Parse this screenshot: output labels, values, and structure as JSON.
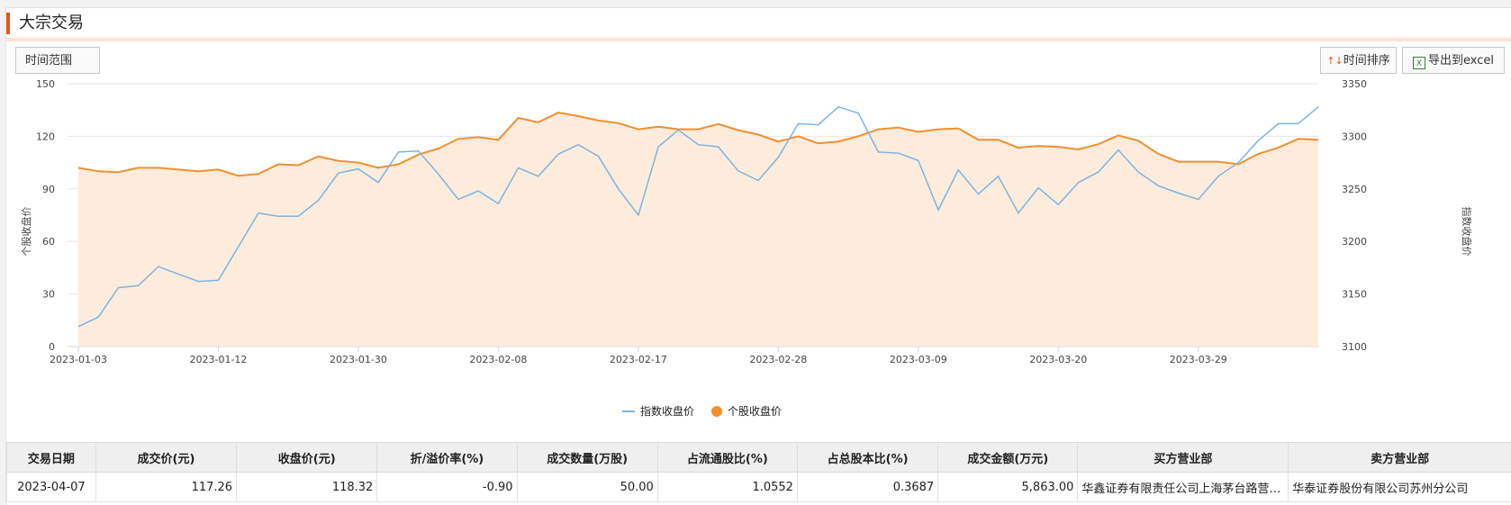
{
  "header": {
    "title": "大宗交易"
  },
  "toolbar": {
    "range_label": "时间范围",
    "sort_label": "时间排序",
    "sort_arrows": "↑↓",
    "export_label": "导出到excel"
  },
  "chart_data": {
    "type": "line",
    "x": [
      "2023-01-03",
      "2023-01-04",
      "2023-01-05",
      "2023-01-06",
      "2023-01-09",
      "2023-01-10",
      "2023-01-11",
      "2023-01-12",
      "2023-01-13",
      "2023-01-16",
      "2023-01-17",
      "2023-01-18",
      "2023-01-19",
      "2023-01-20",
      "2023-01-30",
      "2023-01-31",
      "2023-02-01",
      "2023-02-02",
      "2023-02-03",
      "2023-02-06",
      "2023-02-07",
      "2023-02-08",
      "2023-02-09",
      "2023-02-10",
      "2023-02-13",
      "2023-02-14",
      "2023-02-15",
      "2023-02-16",
      "2023-02-17",
      "2023-02-20",
      "2023-02-21",
      "2023-02-22",
      "2023-02-23",
      "2023-02-24",
      "2023-02-27",
      "2023-02-28",
      "2023-03-01",
      "2023-03-02",
      "2023-03-03",
      "2023-03-06",
      "2023-03-07",
      "2023-03-08",
      "2023-03-09",
      "2023-03-10",
      "2023-03-13",
      "2023-03-14",
      "2023-03-15",
      "2023-03-16",
      "2023-03-17",
      "2023-03-20",
      "2023-03-21",
      "2023-03-22",
      "2023-03-23",
      "2023-03-24",
      "2023-03-27",
      "2023-03-28",
      "2023-03-29",
      "2023-03-30",
      "2023-03-31",
      "2023-04-03",
      "2023-04-04",
      "2023-04-06",
      "2023-04-07"
    ],
    "x_tick_labels": [
      "2023-01-03",
      "2023-01-12",
      "2023-01-30",
      "2023-02-08",
      "2023-02-17",
      "2023-02-28",
      "2023-03-09",
      "2023-03-20",
      "2023-03-29"
    ],
    "series": [
      {
        "name": "指数收盘价",
        "axis": "right",
        "color": "#7cb5e0",
        "values": [
          3119,
          3128,
          3156,
          3158,
          3176,
          3169,
          3162,
          3163,
          3195,
          3227,
          3224,
          3224,
          3239,
          3265,
          3269,
          3256,
          3285,
          3286,
          3264,
          3240,
          3248,
          3236,
          3270,
          3262,
          3283,
          3292,
          3281,
          3250,
          3225,
          3290,
          3306,
          3292,
          3290,
          3267,
          3258,
          3280,
          3312,
          3311,
          3328,
          3322,
          3285,
          3284,
          3277,
          3230,
          3268,
          3245,
          3262,
          3227,
          3251,
          3235,
          3256,
          3266,
          3287,
          3266,
          3253,
          3246,
          3240,
          3262,
          3275,
          3296,
          3312,
          3312,
          3328
        ]
      },
      {
        "name": "个股收盘价",
        "axis": "left",
        "color": "#f0902e",
        "values": [
          102,
          100,
          99.5,
          102,
          102,
          101,
          100,
          101,
          97.5,
          98.5,
          104,
          103.5,
          108.5,
          106,
          105,
          102,
          104,
          109.5,
          113,
          118.5,
          119.5,
          118,
          130.5,
          128,
          133.5,
          131.5,
          129,
          127.5,
          124,
          125.5,
          124,
          124,
          127,
          123.5,
          121,
          117,
          120,
          116,
          117,
          120,
          124,
          125,
          122.5,
          124,
          124.5,
          118,
          118,
          113.5,
          114.5,
          114,
          112.5,
          115.5,
          120.5,
          117.5,
          110,
          105.5,
          105.5,
          105.5,
          104,
          110,
          113.5,
          118.5,
          118
        ]
      }
    ],
    "y_left": {
      "label": "个股收盘价",
      "ticks": [
        0,
        30,
        60,
        90,
        120,
        150
      ],
      "min": 0,
      "max": 150
    },
    "y_right": {
      "label": "指数收盘价",
      "ticks": [
        3100,
        3150,
        3200,
        3250,
        3300,
        3350
      ],
      "min": 3100,
      "max": 3350
    },
    "legend_position": "bottom-center",
    "area_fill": "#fdebdc",
    "grid": true
  },
  "table": {
    "headers": [
      "交易日期",
      "成交价(元)",
      "收盘价(元)",
      "折/溢价率(%)",
      "成交数量(万股)",
      "占流通股比(%)",
      "占总股本比(%)",
      "成交金额(万元)",
      "买方营业部",
      "卖方营业部"
    ],
    "rows": [
      [
        "2023-04-07",
        "117.26",
        "118.32",
        "-0.90",
        "50.00",
        "1.0552",
        "0.3687",
        "5,863.00",
        "华鑫证券有限责任公司上海茅台路营业部",
        "华泰证券股份有限公司苏州分公司"
      ]
    ]
  }
}
